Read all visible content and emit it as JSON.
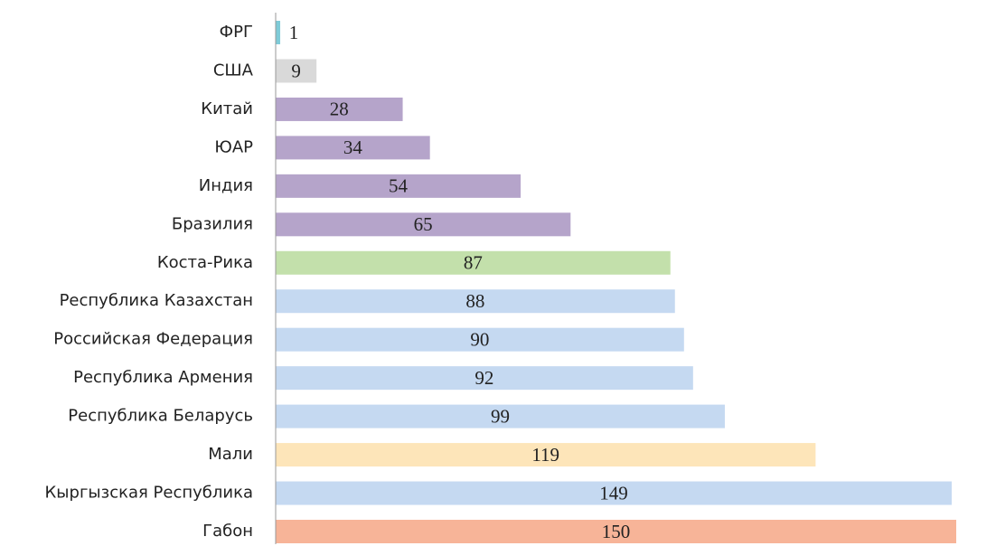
{
  "chart_data": {
    "type": "bar",
    "orientation": "horizontal",
    "categories": [
      "ФРГ",
      "США",
      "Китай",
      "ЮАР",
      "Индия",
      "Бразилия",
      "Коста-Рика",
      "Республика Казахстан",
      "Российская Федерация",
      "Республика Армения",
      "Республика Беларусь",
      "Мали",
      "Кыргызская Республика",
      "Габон"
    ],
    "values": [
      1,
      9,
      28,
      34,
      54,
      65,
      87,
      88,
      90,
      92,
      99,
      119,
      149,
      150
    ],
    "colors": [
      "#7fcbd8",
      "#d9d9d9",
      "#b5a4ca",
      "#b5a4ca",
      "#b5a4ca",
      "#b5a4ca",
      "#c3e0ab",
      "#c5d9f1",
      "#c5d9f1",
      "#c5d9f1",
      "#c5d9f1",
      "#fde5b9",
      "#c5d9f1",
      "#f7b498"
    ]
  }
}
